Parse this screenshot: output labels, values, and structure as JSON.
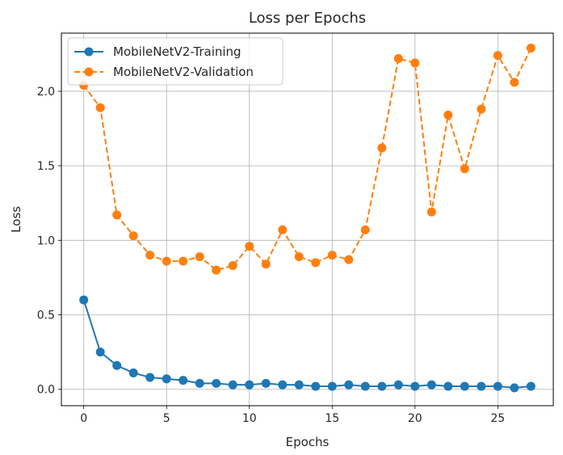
{
  "chart_data": {
    "type": "line",
    "title": "Loss per Epochs",
    "xlabel": "Epochs",
    "ylabel": "Loss",
    "xlim": [
      -1.35,
      28.35
    ],
    "ylim": [
      -0.11,
      2.39
    ],
    "xticks": [
      0,
      5,
      10,
      15,
      20,
      25
    ],
    "yticks": [
      0.0,
      0.5,
      1.0,
      1.5,
      2.0
    ],
    "ytick_labels": [
      "0.0",
      "0.5",
      "1.0",
      "1.5",
      "2.0"
    ],
    "grid": true,
    "legend_position": "upper-left",
    "x": [
      0,
      1,
      2,
      3,
      4,
      5,
      6,
      7,
      8,
      9,
      10,
      11,
      12,
      13,
      14,
      15,
      16,
      17,
      18,
      19,
      20,
      21,
      22,
      23,
      24,
      25,
      26,
      27
    ],
    "series": [
      {
        "name": "MobileNetV2-Training",
        "color": "#1f77b4",
        "linestyle": "solid",
        "marker": "circle",
        "values": [
          0.6,
          0.25,
          0.16,
          0.11,
          0.08,
          0.07,
          0.06,
          0.04,
          0.04,
          0.03,
          0.03,
          0.04,
          0.03,
          0.03,
          0.02,
          0.02,
          0.03,
          0.02,
          0.02,
          0.03,
          0.02,
          0.03,
          0.02,
          0.02,
          0.02,
          0.02,
          0.01,
          0.02
        ]
      },
      {
        "name": "MobileNetV2-Validation",
        "color": "#ff7f0e",
        "linestyle": "dashed",
        "marker": "circle",
        "values": [
          2.04,
          1.89,
          1.17,
          1.03,
          0.9,
          0.86,
          0.86,
          0.89,
          0.8,
          0.83,
          0.96,
          0.84,
          1.07,
          0.89,
          0.85,
          0.9,
          0.87,
          1.07,
          1.62,
          2.22,
          2.19,
          1.19,
          1.84,
          1.48,
          1.88,
          2.24,
          2.06,
          2.29
        ]
      }
    ]
  }
}
